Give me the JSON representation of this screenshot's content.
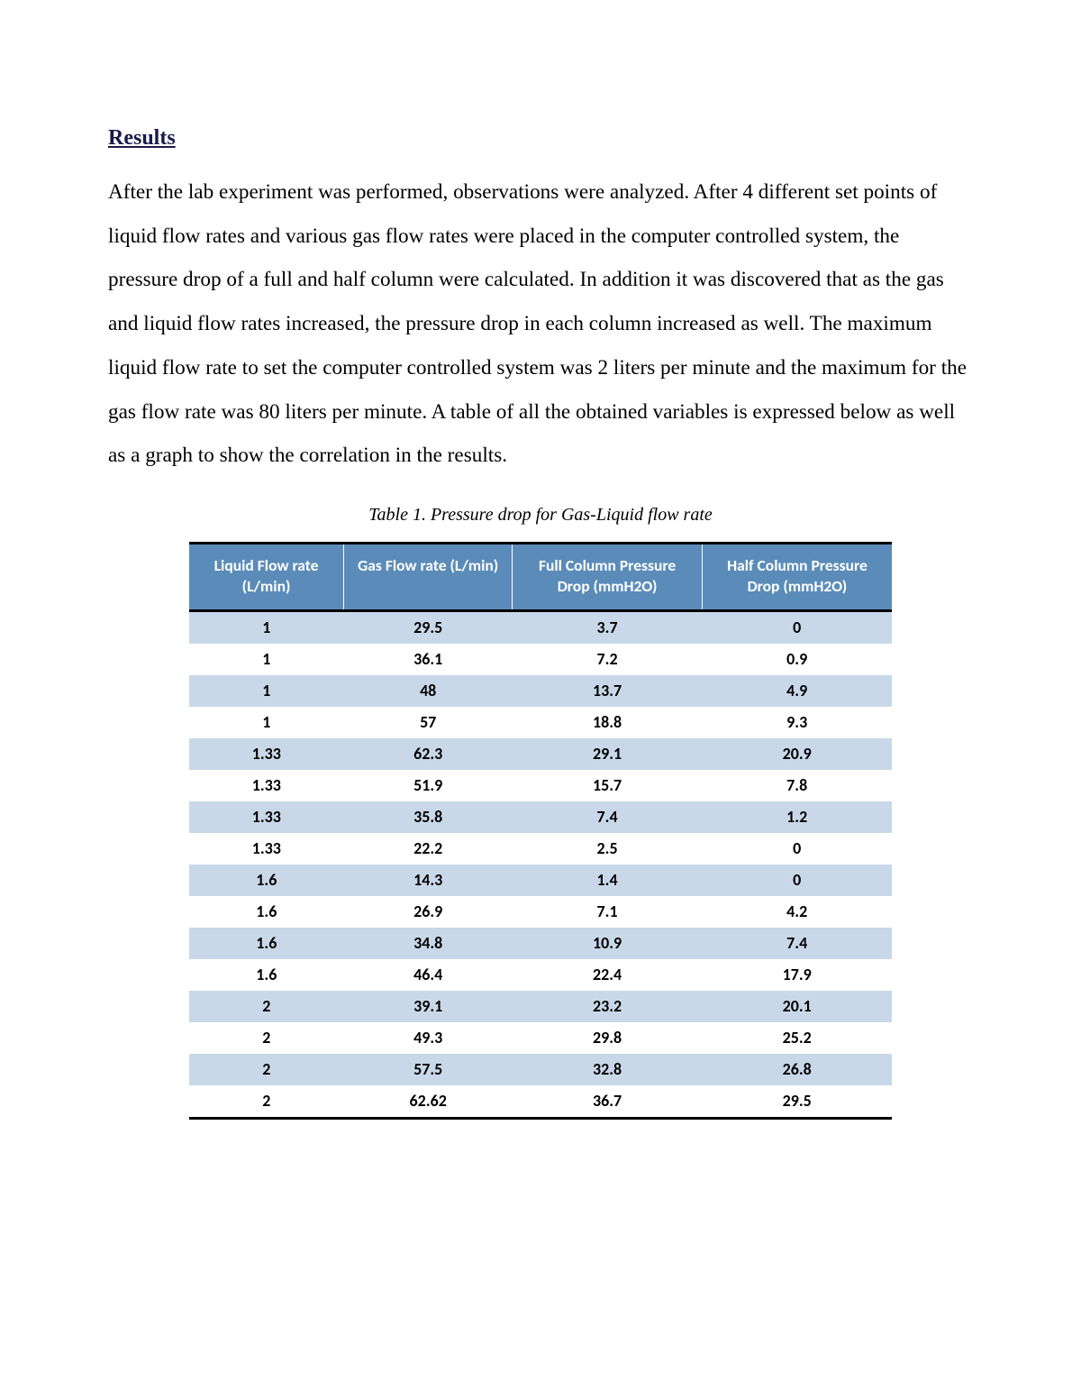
{
  "heading": "Results",
  "paragraph": "After the lab experiment was performed, observations were analyzed. After 4 different set points of liquid flow rates and various gas flow rates were placed in the computer controlled system, the pressure drop of a full and half column were calculated. In addition it was discovered that as the gas and liquid flow rates increased, the pressure drop in each column increased as well. The maximum liquid flow rate to set the computer controlled system was 2 liters per minute and the maximum for the gas flow rate was 80 liters per minute. A table of all the obtained variables is expressed below as well as a graph to show the correlation in the results.",
  "table": {
    "caption": "Table 1. Pressure drop for Gas-Liquid flow rate",
    "columns": [
      "Liquid Flow rate (L/min)",
      "Gas Flow rate (L/min)",
      "Full Column Pressure Drop (mmH2O)",
      "Half Column Pressure Drop (mmH2O)"
    ],
    "header_bg": "#5b8cb9",
    "header_text_color": "#ffffff",
    "header_fontsize": 17.5,
    "cell_fontsize": 18,
    "band_color": "#c9d8e8",
    "plain_color": "#ffffff",
    "border_color": "#000000",
    "col_widths_pct": [
      22,
      24,
      27,
      27
    ],
    "rows": [
      [
        "1",
        "29.5",
        "3.7",
        "0"
      ],
      [
        "1",
        "36.1",
        "7.2",
        "0.9"
      ],
      [
        "1",
        "48",
        "13.7",
        "4.9"
      ],
      [
        "1",
        "57",
        "18.8",
        "9.3"
      ],
      [
        "1.33",
        "62.3",
        "29.1",
        "20.9"
      ],
      [
        "1.33",
        "51.9",
        "15.7",
        "7.8"
      ],
      [
        "1.33",
        "35.8",
        "7.4",
        "1.2"
      ],
      [
        "1.33",
        "22.2",
        "2.5",
        "0"
      ],
      [
        "1.6",
        "14.3",
        "1.4",
        "0"
      ],
      [
        "1.6",
        "26.9",
        "7.1",
        "4.2"
      ],
      [
        "1.6",
        "34.8",
        "10.9",
        "7.4"
      ],
      [
        "1.6",
        "46.4",
        "22.4",
        "17.9"
      ],
      [
        "2",
        "39.1",
        "23.2",
        "20.1"
      ],
      [
        "2",
        "49.3",
        "29.8",
        "25.2"
      ],
      [
        "2",
        "57.5",
        "32.8",
        "26.8"
      ],
      [
        "2",
        "62.62",
        "36.7",
        "29.5"
      ]
    ]
  },
  "typography": {
    "heading_color": "#1a1a4a",
    "heading_fontsize": 24,
    "body_fontsize": 23.2,
    "body_lineheight": 2.1,
    "caption_fontsize": 20,
    "font_family_serif": "Times New Roman",
    "font_family_sans": "Calibri"
  },
  "page_bg": "#ffffff"
}
